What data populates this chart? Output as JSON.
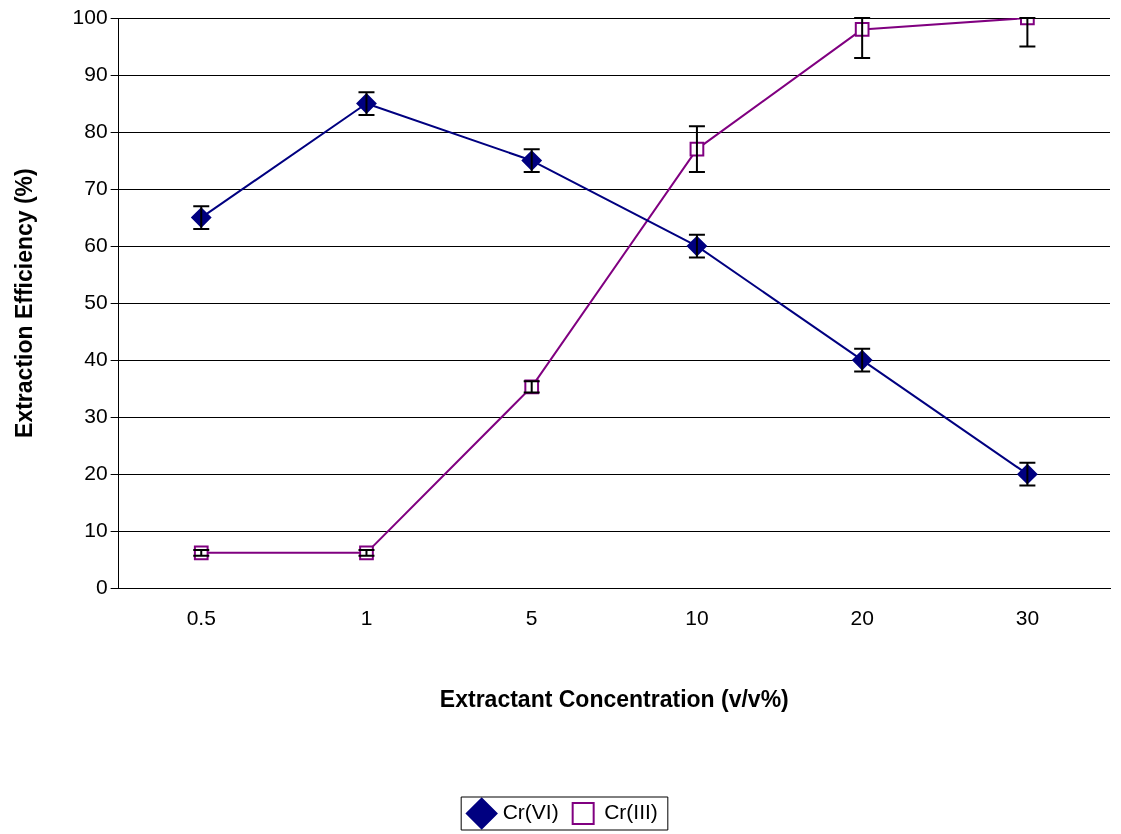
{
  "chart_data": {
    "type": "line",
    "xlabel": "Extractant Concentration (v/v%)",
    "ylabel": "Extraction Efficiency (%)",
    "categories": [
      "0.5",
      "1",
      "5",
      "10",
      "20",
      "30"
    ],
    "series": [
      {
        "name": "Cr(VI)",
        "color": "#000080",
        "marker": "diamond",
        "values": [
          65,
          85,
          75,
          60,
          40,
          20
        ],
        "errors": [
          2,
          2,
          2,
          2,
          2,
          2
        ]
      },
      {
        "name": "Cr(III)",
        "color": "#800080",
        "marker": "square",
        "values": [
          6.2,
          6.2,
          35.3,
          77,
          98,
          100
        ],
        "errors": [
          0.5,
          0.5,
          1,
          4,
          [
            93,
            100
          ],
          [
            95,
            100
          ]
        ]
      }
    ],
    "ylim": [
      0,
      100
    ],
    "yticks": [
      0,
      10,
      20,
      30,
      40,
      50,
      60,
      70,
      80,
      90,
      100
    ],
    "grid": "y",
    "legend": "bottom"
  }
}
